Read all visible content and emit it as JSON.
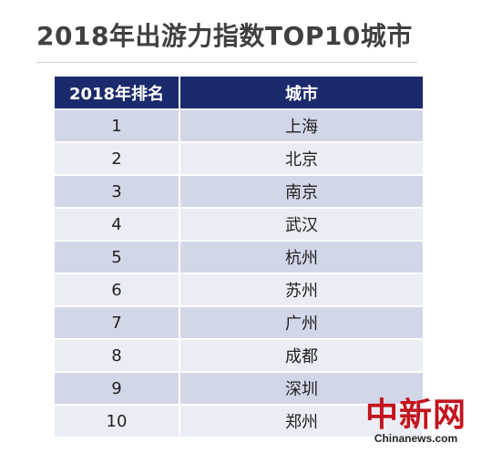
{
  "title": "2018年出游力指数TOP10城市",
  "table": {
    "headers": {
      "rank": "2018年排名",
      "city": "城市"
    },
    "rows": [
      {
        "rank": "1",
        "city": "上海"
      },
      {
        "rank": "2",
        "city": "北京"
      },
      {
        "rank": "3",
        "city": "南京"
      },
      {
        "rank": "4",
        "city": "武汉"
      },
      {
        "rank": "5",
        "city": "杭州"
      },
      {
        "rank": "6",
        "city": "苏州"
      },
      {
        "rank": "7",
        "city": "广州"
      },
      {
        "rank": "8",
        "city": "成都"
      },
      {
        "rank": "9",
        "city": "深圳"
      },
      {
        "rank": "10",
        "city": "郑州"
      }
    ]
  },
  "watermark": {
    "logo": "中新网",
    "url": "Chinanews.com"
  },
  "colors": {
    "header_bg": "#1a2a6c",
    "row_odd": "#d2d7e8",
    "row_even": "#eaedf4",
    "title": "#404040",
    "watermark": "#c3141e"
  }
}
